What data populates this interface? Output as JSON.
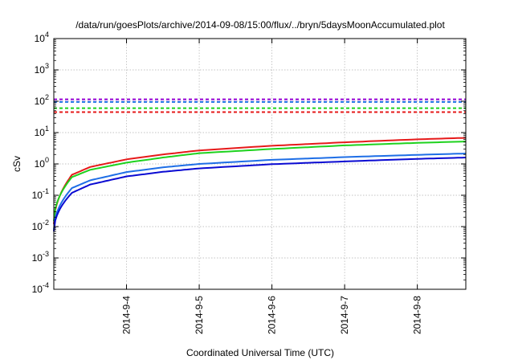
{
  "chart_data": {
    "type": "line",
    "title": "/data/run/goesPlots/archive/2014-09-08/15:00/flux/../bryn/5daysMoonAccumulated.plot",
    "xlabel": "Coordinated Universal Time (UTC)",
    "ylabel": "cSv",
    "y_scale": "log",
    "ylim": [
      0.0001,
      10000
    ],
    "y_ticks": [
      {
        "base": "10",
        "exp": "-4",
        "value": 0.0001
      },
      {
        "base": "10",
        "exp": "-3",
        "value": 0.001
      },
      {
        "base": "10",
        "exp": "-2",
        "value": 0.01
      },
      {
        "base": "10",
        "exp": "-1",
        "value": 0.1
      },
      {
        "base": "10",
        "exp": "0",
        "value": 1
      },
      {
        "base": "10",
        "exp": "1",
        "value": 10
      },
      {
        "base": "10",
        "exp": "2",
        "value": 100
      },
      {
        "base": "10",
        "exp": "3",
        "value": 1000
      },
      {
        "base": "10",
        "exp": "4",
        "value": 10000
      }
    ],
    "x_type": "date",
    "xlim": [
      "2014-09-03 00:00",
      "2014-09-08 16:00"
    ],
    "x_ticks": [
      "2014-9-4",
      "2014-9-5",
      "2014-9-6",
      "2014-9-7",
      "2014-9-8"
    ],
    "x_tick_dates": [
      "2014-09-04 00:00",
      "2014-09-05 00:00",
      "2014-09-06 00:00",
      "2014-09-07 00:00",
      "2014-09-08 00:00"
    ],
    "grid": true,
    "series": [
      {
        "style": "solid",
        "color": "#e61a1a",
        "x": [
          "2014-09-03 00:00",
          "2014-09-03 06:00",
          "2014-09-03 12:00",
          "2014-09-04 00:00",
          "2014-09-04 12:00",
          "2014-09-05 00:00",
          "2014-09-06 00:00",
          "2014-09-07 00:00",
          "2014-09-08 00:00",
          "2014-09-08 16:00"
        ],
        "y": [
          0.012,
          0.45,
          0.8,
          1.4,
          2.0,
          2.7,
          3.8,
          4.9,
          6.1,
          6.8
        ]
      },
      {
        "style": "solid",
        "color": "#1ed21e",
        "x": [
          "2014-09-03 00:00",
          "2014-09-03 06:00",
          "2014-09-03 12:00",
          "2014-09-04 00:00",
          "2014-09-04 12:00",
          "2014-09-05 00:00",
          "2014-09-06 00:00",
          "2014-09-07 00:00",
          "2014-09-08 00:00",
          "2014-09-08 16:00"
        ],
        "y": [
          0.015,
          0.38,
          0.65,
          1.1,
          1.6,
          2.2,
          3.0,
          3.9,
          4.7,
          5.2
        ]
      },
      {
        "style": "solid",
        "color": "#1e6ee6",
        "x": [
          "2014-09-03 00:00",
          "2014-09-03 06:00",
          "2014-09-03 12:00",
          "2014-09-04 00:00",
          "2014-09-04 12:00",
          "2014-09-05 00:00",
          "2014-09-06 00:00",
          "2014-09-07 00:00",
          "2014-09-08 00:00",
          "2014-09-08 16:00"
        ],
        "y": [
          0.008,
          0.17,
          0.3,
          0.55,
          0.78,
          1.0,
          1.35,
          1.65,
          1.95,
          2.15
        ]
      },
      {
        "style": "solid",
        "color": "#0a0ad2",
        "x": [
          "2014-09-03 00:00",
          "2014-09-03 06:00",
          "2014-09-03 12:00",
          "2014-09-04 00:00",
          "2014-09-04 12:00",
          "2014-09-05 00:00",
          "2014-09-06 00:00",
          "2014-09-07 00:00",
          "2014-09-08 00:00",
          "2014-09-08 16:00"
        ],
        "y": [
          0.007,
          0.12,
          0.22,
          0.4,
          0.56,
          0.72,
          0.98,
          1.2,
          1.45,
          1.6
        ]
      },
      {
        "style": "dashed",
        "color": "#9400d3",
        "x": [
          "2014-09-03 00:00",
          "2014-09-08 16:00"
        ],
        "y": [
          115,
          115
        ]
      },
      {
        "style": "dashed",
        "color": "#1e6ee6",
        "x": [
          "2014-09-03 00:00",
          "2014-09-08 16:00"
        ],
        "y": [
          95,
          95
        ]
      },
      {
        "style": "dashed",
        "color": "#1ed21e",
        "x": [
          "2014-09-03 00:00",
          "2014-09-08 16:00"
        ],
        "y": [
          60,
          60
        ]
      },
      {
        "style": "dashed",
        "color": "#e61a1a",
        "x": [
          "2014-09-03 00:00",
          "2014-09-08 16:00"
        ],
        "y": [
          45,
          45
        ]
      }
    ]
  }
}
